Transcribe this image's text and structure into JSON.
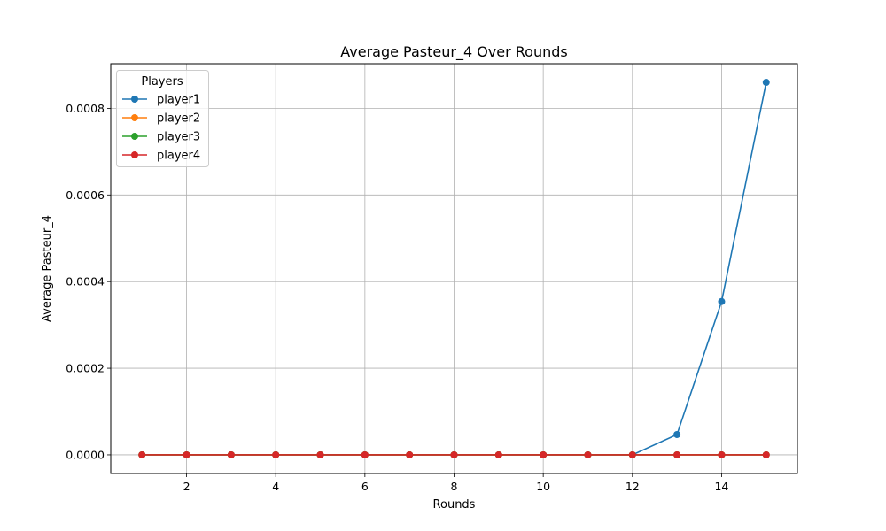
{
  "chart_data": {
    "type": "line",
    "title": "Average Pasteur_4 Over Rounds",
    "xlabel": "Rounds",
    "ylabel": "Average Pasteur_4",
    "x": [
      1,
      2,
      3,
      4,
      5,
      6,
      7,
      8,
      9,
      10,
      11,
      12,
      13,
      14,
      15
    ],
    "xlim": [
      0.3,
      15.7
    ],
    "ylim": [
      -4.3e-05,
      0.000903
    ],
    "xticks": [
      2,
      4,
      6,
      8,
      10,
      12,
      14
    ],
    "xtick_labels": [
      "2",
      "4",
      "6",
      "8",
      "10",
      "12",
      "14"
    ],
    "yticks": [
      0,
      0.0002,
      0.0004,
      0.0006,
      0.0008
    ],
    "ytick_labels": [
      "0.0000",
      "0.0002",
      "0.0004",
      "0.0006",
      "0.0008"
    ],
    "grid": true,
    "legend": {
      "title": "Players",
      "placement": "upper-left"
    },
    "series": [
      {
        "name": "player1",
        "color": "#1f77b4",
        "values": [
          0,
          0,
          0,
          0,
          0,
          0,
          0,
          0,
          0,
          0,
          0,
          0,
          4.7e-05,
          0.000354,
          0.00086
        ]
      },
      {
        "name": "player2",
        "color": "#ff7f0e",
        "values": [
          0,
          0,
          0,
          0,
          0,
          0,
          0,
          0,
          0,
          0,
          0,
          0,
          0,
          0,
          0
        ]
      },
      {
        "name": "player3",
        "color": "#2ca02c",
        "values": [
          0,
          0,
          0,
          0,
          0,
          0,
          0,
          0,
          0,
          0,
          0,
          0,
          0,
          0,
          0
        ]
      },
      {
        "name": "player4",
        "color": "#d62728",
        "values": [
          0,
          0,
          0,
          0,
          0,
          0,
          0,
          0,
          0,
          0,
          0,
          0,
          0,
          0,
          0
        ]
      }
    ]
  }
}
